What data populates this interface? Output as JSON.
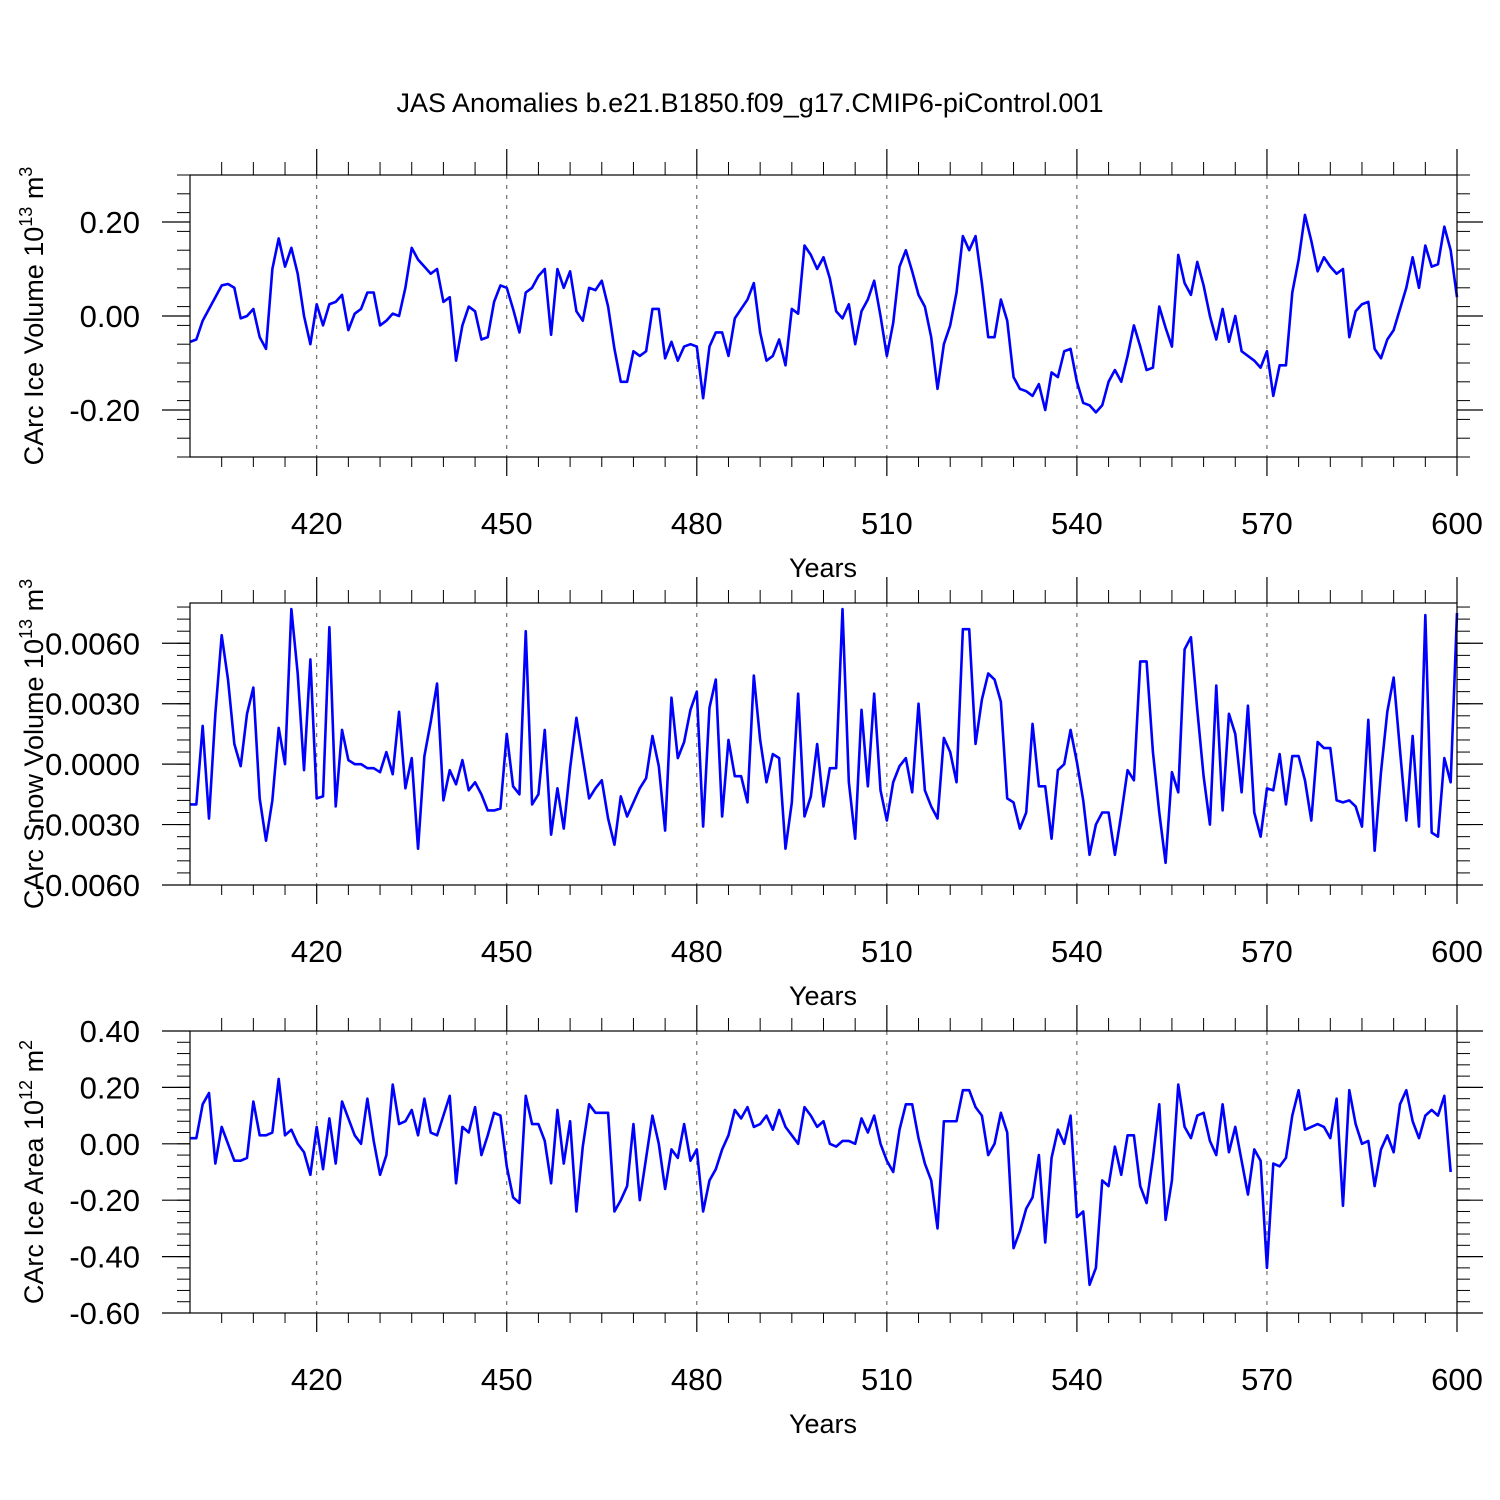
{
  "title": "JAS Anomalies b.e21.B1850.f09_g17.CMIP6-piControl.001",
  "colors": {
    "line": "#0000ff",
    "axis": "#000000",
    "grid": "#555555"
  },
  "chart_data": [
    {
      "type": "line",
      "title": "",
      "xlabel": "Years",
      "ylabel": "CArc Ice Volume 10",
      "ylabel_exp": "13",
      "ylabel_unit": " m",
      "ylabel_unit_exp": "3",
      "xlim": [
        400,
        600
      ],
      "ylim": [
        -0.3,
        0.3
      ],
      "xticks": [
        420,
        450,
        480,
        510,
        540,
        570,
        600
      ],
      "xtick_labels": [
        "420",
        "450",
        "480",
        "510",
        "540",
        "570",
        "600"
      ],
      "yticks": [
        -0.2,
        0.0,
        0.2
      ],
      "ytick_labels": [
        "-0.20",
        "0.00",
        "0.20"
      ],
      "grid": "vertical-dashed",
      "series": [
        {
          "x_start": 400,
          "x_step": 1,
          "values": [
            -0.055,
            -0.05,
            -0.01,
            0.015,
            0.04,
            0.065,
            0.068,
            0.06,
            -0.005,
            0.0,
            0.015,
            -0.045,
            -0.07,
            0.1,
            0.165,
            0.105,
            0.145,
            0.09,
            0.0,
            -0.06,
            0.025,
            -0.02,
            0.025,
            0.03,
            0.045,
            -0.03,
            0.005,
            0.015,
            0.05,
            0.05,
            -0.02,
            -0.01,
            0.005,
            0.0,
            0.06,
            0.145,
            0.12,
            0.105,
            0.09,
            0.1,
            0.03,
            0.04,
            -0.095,
            -0.02,
            0.02,
            0.01,
            -0.05,
            -0.045,
            0.03,
            0.065,
            0.06,
            0.015,
            -0.035,
            0.05,
            0.06,
            0.085,
            0.1,
            -0.04,
            0.1,
            0.06,
            0.095,
            0.01,
            -0.01,
            0.06,
            0.055,
            0.075,
            0.02,
            -0.07,
            -0.14,
            -0.14,
            -0.075,
            -0.085,
            -0.075,
            0.015,
            0.015,
            -0.09,
            -0.055,
            -0.095,
            -0.065,
            -0.06,
            -0.065,
            -0.175,
            -0.065,
            -0.035,
            -0.035,
            -0.085,
            -0.005,
            0.015,
            0.035,
            0.07,
            -0.035,
            -0.095,
            -0.085,
            -0.05,
            -0.105,
            0.015,
            0.005,
            0.15,
            0.13,
            0.1,
            0.125,
            0.08,
            0.01,
            -0.005,
            0.025,
            -0.06,
            0.01,
            0.035,
            0.075,
            0.0,
            -0.085,
            -0.015,
            0.105,
            0.14,
            0.095,
            0.045,
            0.02,
            -0.045,
            -0.155,
            -0.06,
            -0.02,
            0.05,
            0.17,
            0.14,
            0.17,
            0.07,
            -0.045,
            -0.045,
            0.035,
            -0.01,
            -0.13,
            -0.155,
            -0.16,
            -0.17,
            -0.145,
            -0.2,
            -0.12,
            -0.13,
            -0.075,
            -0.07,
            -0.14,
            -0.185,
            -0.19,
            -0.205,
            -0.19,
            -0.14,
            -0.115,
            -0.14,
            -0.085,
            -0.02,
            -0.065,
            -0.115,
            -0.11,
            0.02,
            -0.025,
            -0.065,
            0.13,
            0.07,
            0.045,
            0.115,
            0.065,
            0.0,
            -0.05,
            0.015,
            -0.055,
            0.0,
            -0.075,
            -0.085,
            -0.095,
            -0.11,
            -0.075,
            -0.17,
            -0.105,
            -0.105,
            0.05,
            0.12,
            0.215,
            0.16,
            0.095,
            0.125,
            0.105,
            0.09,
            0.1,
            -0.045,
            0.01,
            0.025,
            0.03,
            -0.07,
            -0.09,
            -0.05,
            -0.03,
            0.015,
            0.06,
            0.125,
            0.06,
            0.15,
            0.105,
            0.11,
            0.19,
            0.14,
            0.04
          ]
        }
      ]
    },
    {
      "type": "line",
      "title": "",
      "xlabel": "Years",
      "ylabel": "CArc Snow Volume 10",
      "ylabel_exp": "13",
      "ylabel_unit": " m",
      "ylabel_unit_exp": "3",
      "xlim": [
        400,
        600
      ],
      "ylim": [
        -0.006,
        0.008
      ],
      "xticks": [
        420,
        450,
        480,
        510,
        540,
        570,
        600
      ],
      "xtick_labels": [
        "420",
        "450",
        "480",
        "510",
        "540",
        "570",
        "600"
      ],
      "yticks": [
        -0.006,
        -0.003,
        0.0,
        0.003,
        0.006
      ],
      "ytick_labels": [
        "-0.0060",
        "-0.0030",
        "0.0000",
        "0.0030",
        "0.0060"
      ],
      "grid": "vertical-dashed",
      "series": [
        {
          "x_start": 400,
          "x_step": 1,
          "values": [
            -0.002,
            -0.002,
            0.0019,
            -0.0027,
            0.0025,
            0.0064,
            0.0042,
            0.001,
            -0.0001,
            0.0025,
            0.0038,
            -0.0017,
            -0.0038,
            -0.0018,
            0.0018,
            0.0,
            0.0077,
            0.0045,
            -0.0003,
            0.0052,
            -0.0017,
            -0.0016,
            0.0068,
            -0.0021,
            0.0017,
            0.0002,
            0.0,
            0.0,
            -0.0002,
            -0.0002,
            -0.0004,
            0.0006,
            -0.0005,
            0.0026,
            -0.0012,
            0.0003,
            -0.0042,
            0.0004,
            0.0021,
            0.004,
            -0.0018,
            -0.0003,
            -0.001,
            0.0002,
            -0.0013,
            -0.0009,
            -0.0015,
            -0.0023,
            -0.0023,
            -0.0022,
            0.0015,
            -0.0011,
            -0.0015,
            0.0066,
            -0.002,
            -0.0015,
            0.0017,
            -0.0035,
            -0.0012,
            -0.0032,
            -0.0002,
            0.0023,
            0.0003,
            -0.0017,
            -0.0012,
            -0.0008,
            -0.0027,
            -0.004,
            -0.0016,
            -0.0026,
            -0.0019,
            -0.0012,
            -0.0007,
            0.0014,
            -0.0001,
            -0.0033,
            0.0033,
            0.0003,
            0.0011,
            0.0027,
            0.0036,
            -0.0031,
            0.0028,
            0.0042,
            -0.0026,
            0.0012,
            -0.0006,
            -0.0006,
            -0.0019,
            0.0044,
            0.0012,
            -0.0009,
            0.0005,
            0.0003,
            -0.0042,
            -0.0019,
            0.0035,
            -0.0026,
            -0.0016,
            0.001,
            -0.0021,
            -0.0002,
            -0.0002,
            0.0077,
            -0.0009,
            -0.0037,
            0.0027,
            -0.0011,
            0.0035,
            -0.0013,
            -0.0028,
            -0.0009,
            -0.0001,
            0.0003,
            -0.0014,
            0.003,
            -0.0013,
            -0.0021,
            -0.0027,
            0.0013,
            0.0006,
            -0.0009,
            0.0067,
            0.0067,
            0.001,
            0.0032,
            0.0045,
            0.0042,
            0.0031,
            -0.0017,
            -0.0019,
            -0.0032,
            -0.0024,
            0.002,
            -0.0011,
            -0.0011,
            -0.0037,
            -0.0003,
            0.0,
            0.0017,
            0.0001,
            -0.0018,
            -0.0045,
            -0.003,
            -0.0024,
            -0.0024,
            -0.0045,
            -0.0025,
            -0.0003,
            -0.0008,
            0.0051,
            0.0051,
            0.0006,
            -0.0024,
            -0.0049,
            -0.0004,
            -0.0014,
            0.0057,
            0.0063,
            0.0027,
            -0.0006,
            -0.003,
            0.0039,
            -0.0023,
            0.0025,
            0.0015,
            -0.0014,
            0.0029,
            -0.0024,
            -0.0036,
            -0.0012,
            -0.0013,
            0.0005,
            -0.002,
            0.0004,
            0.0004,
            -0.0008,
            -0.0028,
            0.0011,
            0.0008,
            0.0008,
            -0.0018,
            -0.0019,
            -0.0018,
            -0.0021,
            -0.0031,
            0.0022,
            -0.0043,
            -0.0004,
            0.0026,
            0.0043,
            0.0007,
            -0.0028,
            0.0014,
            -0.0031,
            0.0074,
            -0.0034,
            -0.0036,
            0.0003,
            -0.0009,
            0.0075
          ]
        }
      ]
    },
    {
      "type": "line",
      "title": "",
      "xlabel": "Years",
      "ylabel": "CArc Ice Area 10",
      "ylabel_exp": "12",
      "ylabel_unit": " m",
      "ylabel_unit_exp": "2",
      "xlim": [
        400,
        600
      ],
      "ylim": [
        -0.6,
        0.4
      ],
      "xticks": [
        420,
        450,
        480,
        510,
        540,
        570,
        600
      ],
      "xtick_labels": [
        "420",
        "450",
        "480",
        "510",
        "540",
        "570",
        "600"
      ],
      "yticks": [
        -0.6,
        -0.4,
        -0.2,
        0.0,
        0.2,
        0.4
      ],
      "ytick_labels": [
        "-0.60",
        "-0.40",
        "-0.20",
        "0.00",
        "0.20",
        "0.40"
      ],
      "grid": "vertical-dashed",
      "series": [
        {
          "x_start": 400,
          "x_step": 1,
          "values": [
            0.02,
            0.02,
            0.14,
            0.18,
            -0.07,
            0.06,
            0.0,
            -0.06,
            -0.06,
            -0.05,
            0.15,
            0.03,
            0.03,
            0.04,
            0.23,
            0.03,
            0.05,
            0.0,
            -0.03,
            -0.11,
            0.06,
            -0.09,
            0.09,
            -0.07,
            0.15,
            0.09,
            0.03,
            0.0,
            0.16,
            0.01,
            -0.11,
            -0.04,
            0.21,
            0.07,
            0.08,
            0.12,
            0.03,
            0.16,
            0.04,
            0.03,
            0.1,
            0.17,
            -0.14,
            0.06,
            0.04,
            0.13,
            -0.04,
            0.03,
            0.11,
            0.1,
            -0.08,
            -0.19,
            -0.21,
            0.17,
            0.07,
            0.07,
            0.01,
            -0.14,
            0.12,
            -0.07,
            0.08,
            -0.24,
            -0.01,
            0.14,
            0.11,
            0.11,
            0.11,
            -0.24,
            -0.2,
            -0.15,
            0.07,
            -0.2,
            -0.05,
            0.1,
            0.0,
            -0.16,
            -0.02,
            -0.05,
            0.07,
            -0.06,
            -0.02,
            -0.24,
            -0.13,
            -0.09,
            -0.02,
            0.03,
            0.12,
            0.09,
            0.13,
            0.06,
            0.07,
            0.1,
            0.05,
            0.12,
            0.06,
            0.03,
            0.0,
            0.13,
            0.1,
            0.06,
            0.08,
            0.0,
            -0.01,
            0.01,
            0.01,
            0.0,
            0.09,
            0.04,
            0.1,
            0.0,
            -0.06,
            -0.1,
            0.05,
            0.14,
            0.14,
            0.02,
            -0.07,
            -0.13,
            -0.3,
            0.08,
            0.08,
            0.08,
            0.19,
            0.19,
            0.13,
            0.1,
            -0.04,
            0.0,
            0.11,
            0.04,
            -0.37,
            -0.31,
            -0.23,
            -0.19,
            -0.04,
            -0.35,
            -0.05,
            0.05,
            0.0,
            0.1,
            -0.26,
            -0.24,
            -0.5,
            -0.44,
            -0.13,
            -0.15,
            -0.01,
            -0.11,
            0.03,
            0.03,
            -0.15,
            -0.21,
            -0.05,
            0.14,
            -0.27,
            -0.13,
            0.21,
            0.06,
            0.02,
            0.1,
            0.11,
            0.01,
            -0.04,
            0.14,
            -0.03,
            0.06,
            -0.06,
            -0.18,
            -0.02,
            -0.06,
            -0.44,
            -0.07,
            -0.08,
            -0.05,
            0.1,
            0.19,
            0.05,
            0.06,
            0.07,
            0.06,
            0.02,
            0.16,
            -0.22,
            0.19,
            0.07,
            0.0,
            0.01,
            -0.15,
            -0.02,
            0.03,
            -0.03,
            0.14,
            0.19,
            0.08,
            0.02,
            0.1,
            0.12,
            0.1,
            0.17,
            -0.1
          ]
        }
      ]
    }
  ]
}
